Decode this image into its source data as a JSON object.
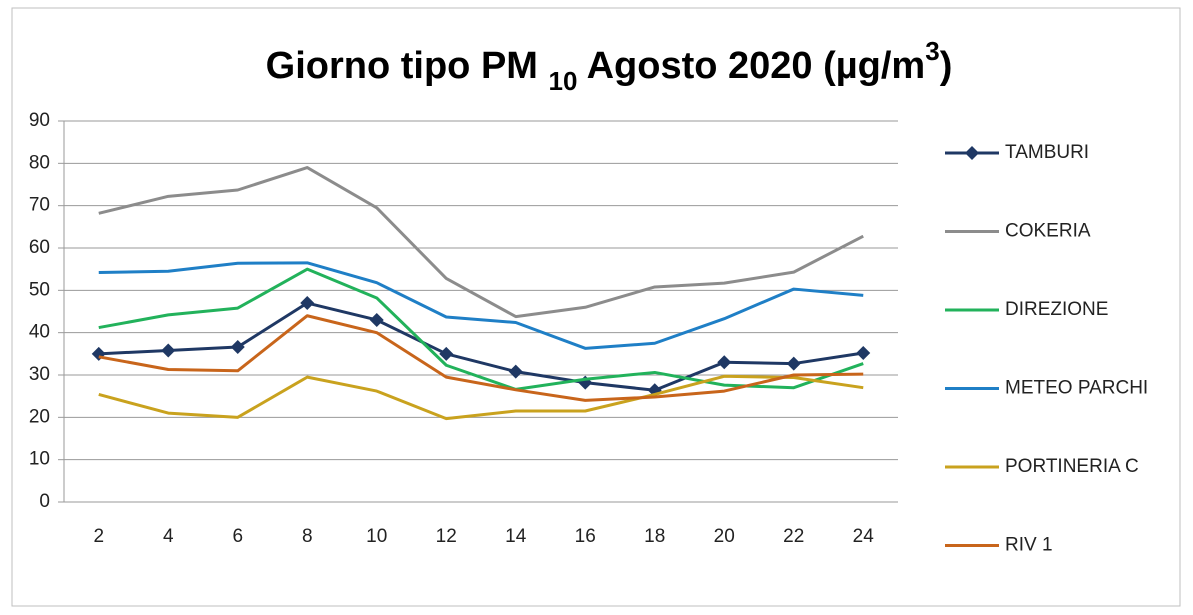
{
  "chart_data": {
    "type": "line",
    "title": [
      "Giorno tipo PM ",
      "10",
      " Agosto 2020 (µg/m",
      "3",
      ")"
    ],
    "categories": [
      "2",
      "4",
      "6",
      "8",
      "10",
      "12",
      "14",
      "16",
      "18",
      "20",
      "22",
      "24"
    ],
    "ylim": [
      0,
      90
    ],
    "yticks": [
      0,
      10,
      20,
      30,
      40,
      50,
      60,
      70,
      80,
      90
    ],
    "grid": true,
    "legend": "right",
    "series": [
      {
        "name": "TAMBURI",
        "color": "#1f3864",
        "marker": "diamond",
        "values": [
          35,
          35.8,
          36.6,
          47,
          43,
          35,
          30.8,
          28.2,
          26.4,
          33,
          32.7,
          35.2
        ]
      },
      {
        "name": "COKERIA",
        "color": "#8c8c8c",
        "values": [
          68.2,
          72.2,
          73.7,
          79,
          69.5,
          52.8,
          43.8,
          46,
          50.8,
          51.7,
          54.3,
          62.8
        ]
      },
      {
        "name": "DIREZIONE",
        "color": "#22b25b",
        "values": [
          41.2,
          44.2,
          45.8,
          55,
          48.2,
          32.3,
          26.6,
          29,
          30.6,
          27.6,
          27,
          32.7
        ]
      },
      {
        "name": "METEO PARCHI",
        "color": "#1f7fc6",
        "values": [
          54.2,
          54.5,
          56.4,
          56.5,
          51.8,
          43.7,
          42.4,
          36.3,
          37.5,
          43.3,
          50.3,
          48.8
        ]
      },
      {
        "name": "PORTINERIA C",
        "color": "#c9a21e",
        "values": [
          25.4,
          21,
          20,
          29.5,
          26.2,
          19.7,
          21.5,
          21.5,
          25.4,
          29.7,
          29.4,
          27
        ]
      },
      {
        "name": "RIV 1",
        "color": "#c8651b",
        "values": [
          34.3,
          31.3,
          31,
          44,
          40,
          29.5,
          26.5,
          24,
          24.8,
          26.2,
          30,
          30.2
        ]
      }
    ]
  }
}
